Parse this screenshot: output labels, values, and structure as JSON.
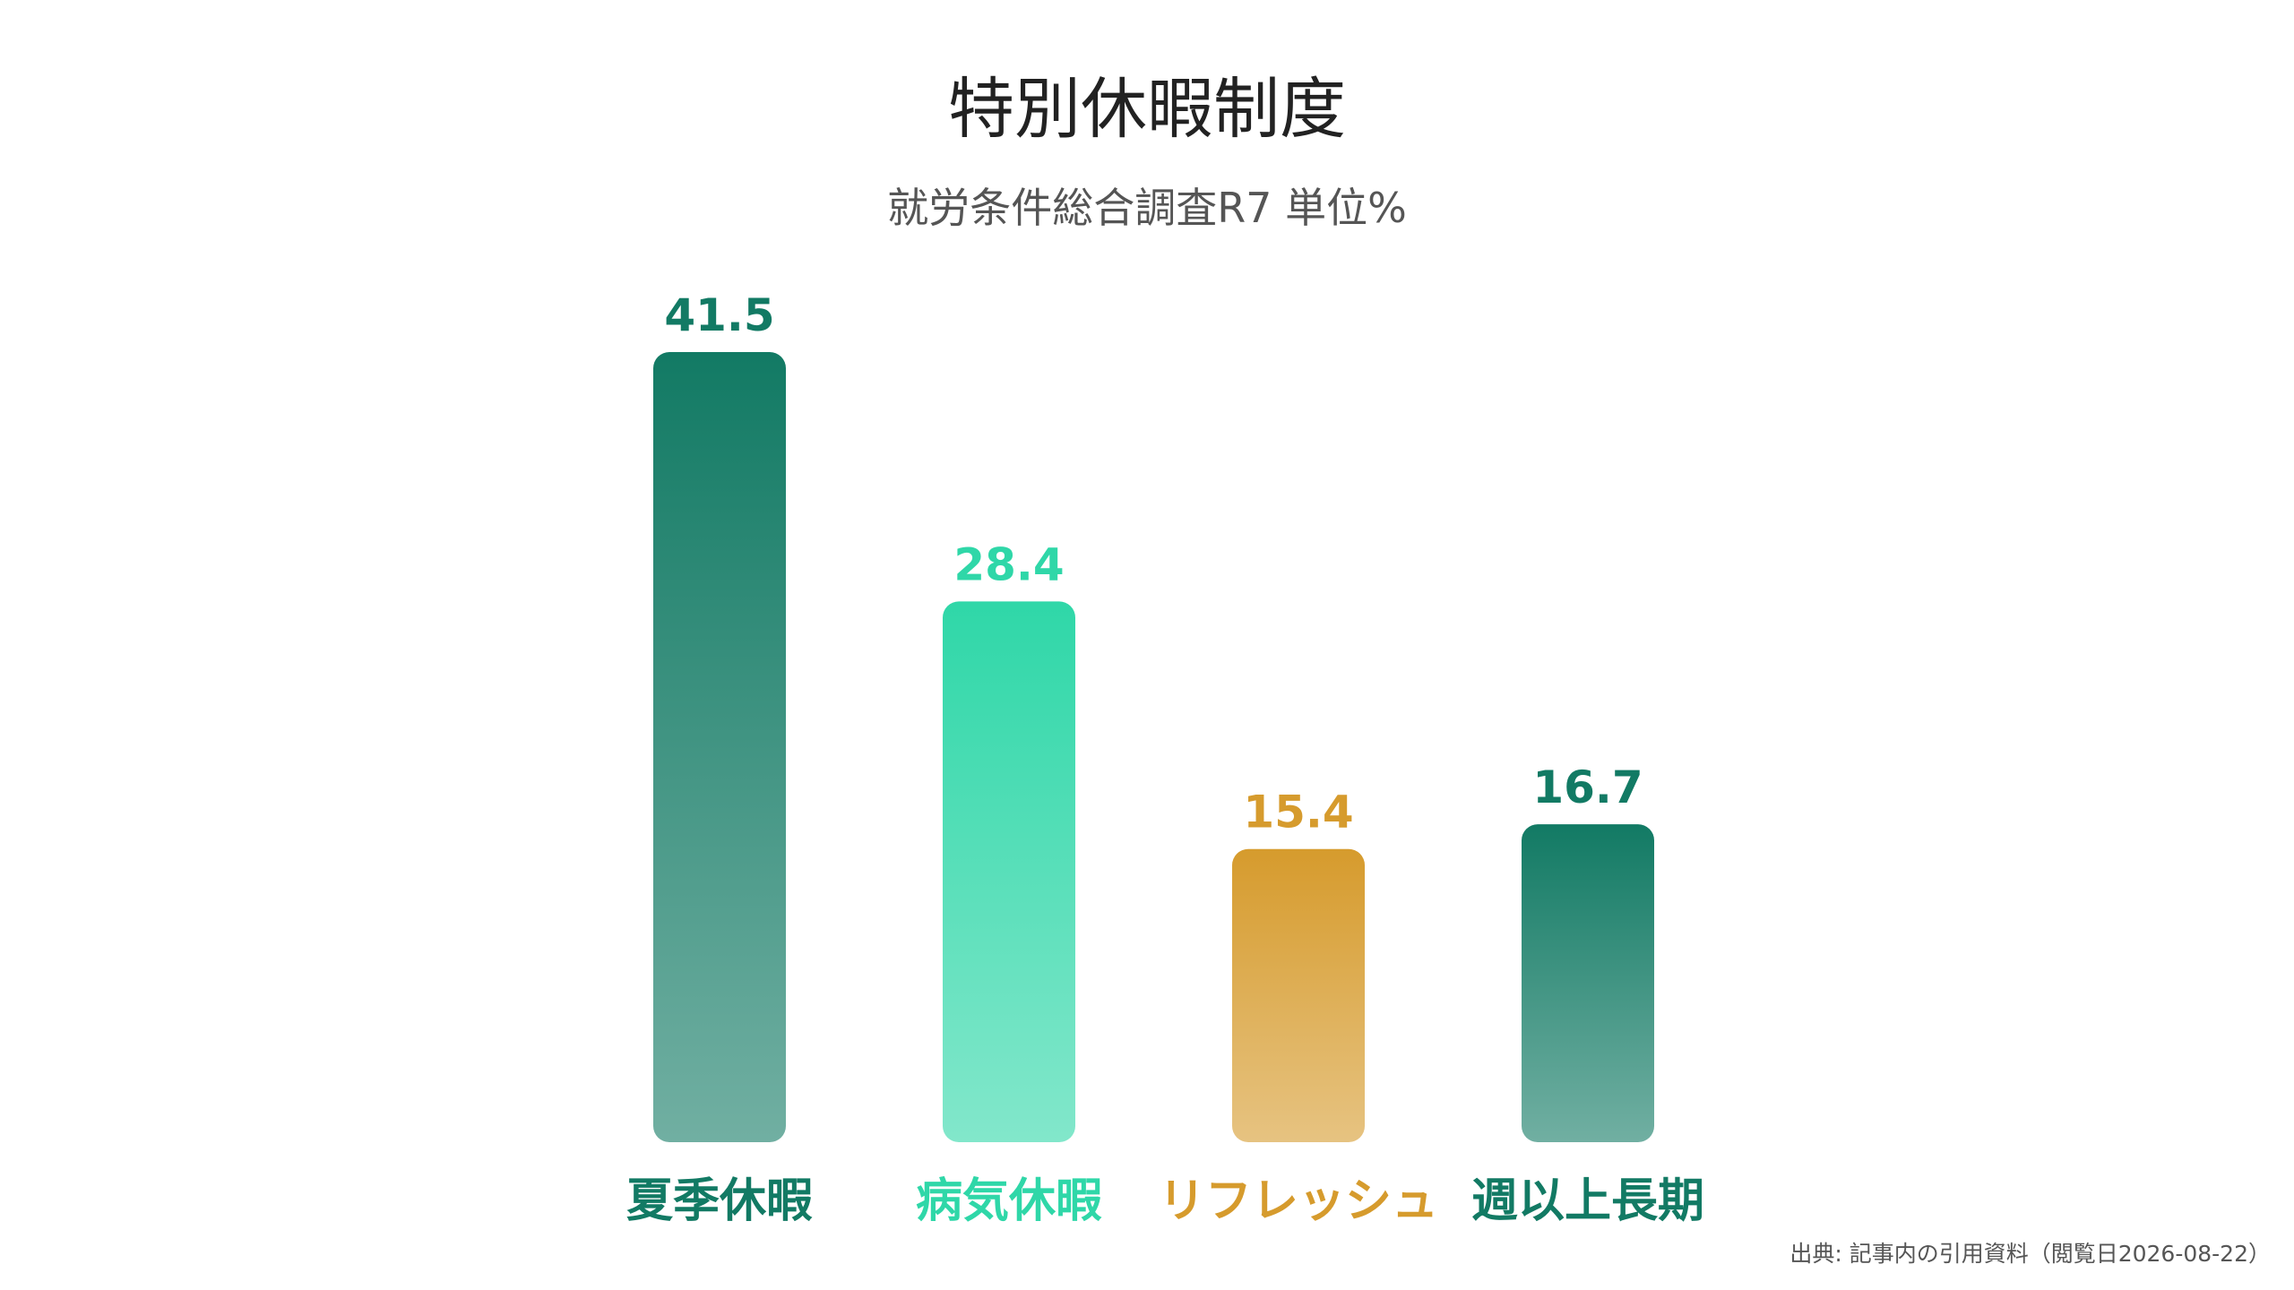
{
  "title": "特別休暇制度",
  "subtitle": "就労条件総合調査R7 単位%",
  "source": "出典: 記事内の引用資料（閲覧日2026-08-22）",
  "chart_data": {
    "type": "bar",
    "title": "特別休暇制度",
    "subtitle": "就労条件総合調査R7 単位%",
    "categories": [
      "夏季休暇",
      "病気休暇",
      "リフレッシュ",
      "週以上長期"
    ],
    "values": [
      41.5,
      28.4,
      15.4,
      16.7
    ],
    "colors": [
      "#127a64",
      "#2fd7a8",
      "#d69b2d",
      "#127a64"
    ],
    "ylim": [
      0,
      41.5
    ],
    "grid": false,
    "legend": "none",
    "xlabel": "",
    "ylabel": ""
  }
}
